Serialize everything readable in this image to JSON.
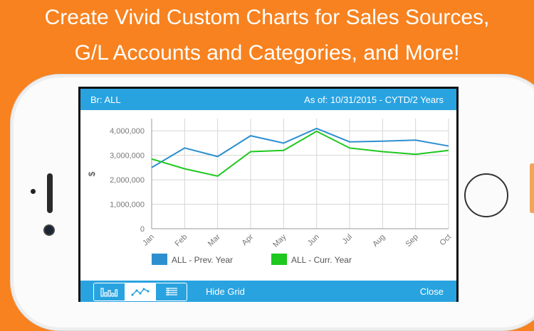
{
  "promo": {
    "line1": "Create Vivid Custom Charts for Sales Sources,",
    "line2": "G/L Accounts and Categories, and More!"
  },
  "header": {
    "branch": "Br:  ALL",
    "as_of": "As of: 10/31/2015 - CYTD/2 Years"
  },
  "toolbar": {
    "view_buttons": [
      {
        "icon": "bar-chart-icon",
        "selected": false
      },
      {
        "icon": "line-chart-icon",
        "selected": true
      },
      {
        "icon": "list-icon",
        "selected": false
      }
    ],
    "hide_grid_label": "Hide Grid",
    "close_label": "Close"
  },
  "colors": {
    "background": "#f7821f",
    "bar": "#29a3e0",
    "prev_year": "#2d8fd0",
    "curr_year": "#1ec81e"
  },
  "chart_data": {
    "type": "line",
    "ylabel": "$",
    "x": [
      "Jan",
      "Feb",
      "Mar",
      "Apr",
      "May",
      "Jun",
      "Jul",
      "Aug",
      "Sep",
      "Oct"
    ],
    "y_ticks": [
      0,
      1000000,
      2000000,
      3000000,
      4000000
    ],
    "y_tick_labels": [
      "0",
      "1,000,000",
      "2,000,000",
      "3,000,000",
      "4,000,000"
    ],
    "ylim": [
      0,
      4500000
    ],
    "grid": true,
    "legend_position": "bottom",
    "series": [
      {
        "name": "ALL - Prev. Year",
        "color": "#2d8fd0",
        "values": [
          2500000,
          3300000,
          2950000,
          3800000,
          3500000,
          4100000,
          3550000,
          3580000,
          3620000,
          3380000
        ]
      },
      {
        "name": "ALL - Curr. Year",
        "color": "#1ec81e",
        "values": [
          2850000,
          2450000,
          2150000,
          3150000,
          3200000,
          3980000,
          3300000,
          3150000,
          3040000,
          3200000
        ]
      }
    ]
  }
}
